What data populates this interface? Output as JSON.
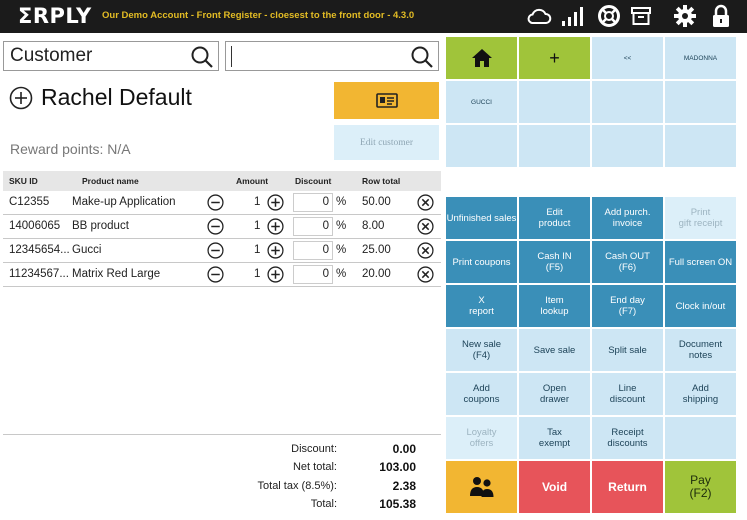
{
  "header": {
    "logo": "ΣRPLY",
    "account": "Our Demo Account - Front Register - cloesest to the front door - 4.3.0",
    "icons": [
      "cloud-icon",
      "signal-icon",
      "lifebuoy-icon",
      "archive-icon",
      "gear-icon",
      "lock-icon"
    ]
  },
  "search": {
    "customer_value": "Customer",
    "product_value": ""
  },
  "customer": {
    "name": "Rachel Default",
    "reward_points": "Reward points: N/A",
    "edit_label": "Edit customer"
  },
  "table": {
    "headers": {
      "sku": "SKU ID",
      "name": "Product name",
      "amount": "Amount",
      "discount": "Discount",
      "total": "Row total"
    },
    "percent_sign": "%",
    "rows": [
      {
        "sku": "C12355",
        "name": "Make-up Application",
        "amount": "1",
        "discount": "0",
        "total": "50.00"
      },
      {
        "sku": "14006065",
        "name": "BB product",
        "amount": "1",
        "discount": "0",
        "total": "8.00"
      },
      {
        "sku": "12345654...",
        "name": "Gucci",
        "amount": "1",
        "discount": "0",
        "total": "25.00"
      },
      {
        "sku": "11234567...",
        "name": "Matrix Red Large",
        "amount": "1",
        "discount": "0",
        "total": "20.00"
      }
    ]
  },
  "summary": {
    "discount_label": "Discount:",
    "discount": "0.00",
    "net_label": "Net total:",
    "net": "103.00",
    "tax_label": "Total tax (8.5%):",
    "tax": "2.38",
    "total_label": "Total:",
    "total": "105.38"
  },
  "quick": {
    "plus": "+",
    "back": "<<",
    "madonna": "MADONNA",
    "gucci": "GUCCI"
  },
  "functions": {
    "unfinished_sales": "Unfinished sales",
    "edit_product": "Edit\nproduct",
    "add_purch_invoice": "Add purch.\ninvoice",
    "print_gift_receipt": "Print\ngift receipt",
    "print_coupons": "Print coupons",
    "cash_in": "Cash IN\n(F5)",
    "cash_out": "Cash OUT\n(F6)",
    "full_screen": "Full screen ON",
    "x_report": "X\nreport",
    "item_lookup": "Item\nlookup",
    "end_day": "End day\n(F7)",
    "clock": "Clock in/out",
    "new_sale": "New sale\n(F4)",
    "save_sale": "Save sale",
    "split_sale": "Split sale",
    "document_notes": "Document\nnotes",
    "add_coupons": "Add\ncoupons",
    "open_drawer": "Open\ndrawer",
    "line_discount": "Line\ndiscount",
    "add_shipping": "Add\nshipping",
    "loyalty_offers": "Loyalty\noffers",
    "tax_exempt": "Tax\nexempt",
    "receipt_discounts": "Receipt\ndiscounts",
    "void": "Void",
    "return": "Return",
    "pay": "Pay\n(F2)"
  },
  "colors": {
    "topbar": "#1b1b1b",
    "account_text": "#e3bc24",
    "green": "#a0c43a",
    "light_blue": "#cde6f4",
    "dark_blue": "#3a8fb8",
    "yellow": "#f2b632",
    "red": "#e7545a"
  }
}
